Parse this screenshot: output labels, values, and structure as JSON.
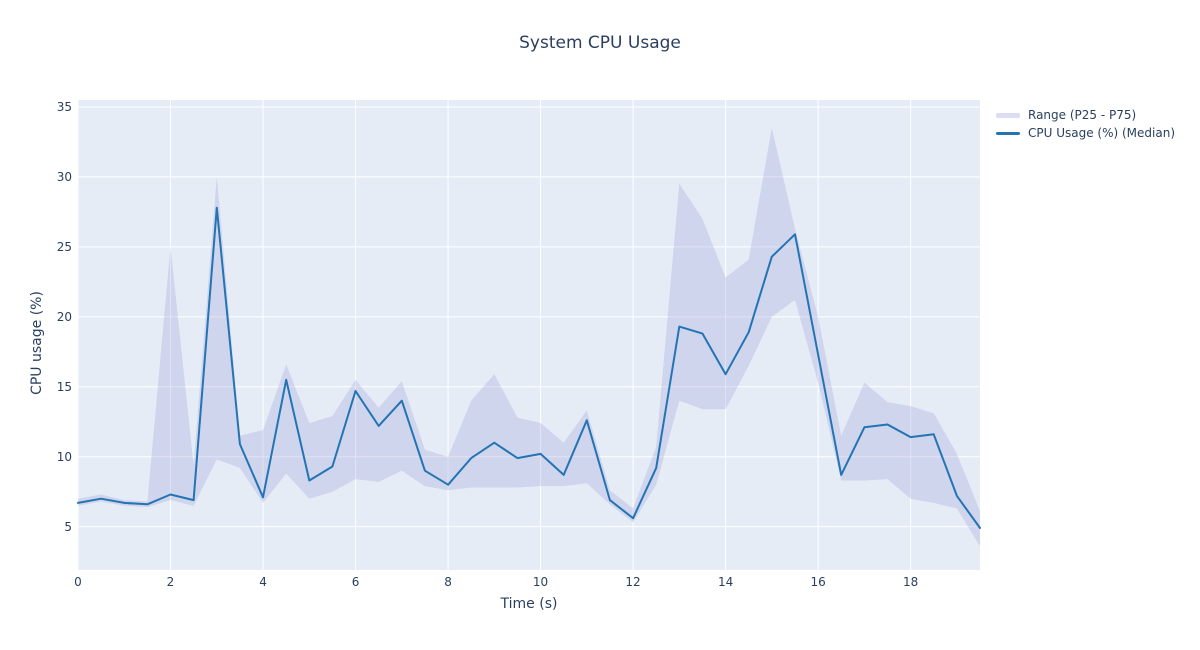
{
  "chart_data": {
    "type": "line",
    "title": "System CPU Usage",
    "xlabel": "Time (s)",
    "ylabel": "CPU usage (%)",
    "x": [
      0,
      0.5,
      1,
      1.5,
      2,
      2.5,
      3,
      3.5,
      4,
      4.5,
      5,
      5.5,
      6,
      6.5,
      7,
      7.5,
      8,
      8.5,
      9,
      9.5,
      10,
      10.5,
      11,
      11.5,
      12,
      12.5,
      13,
      13.5,
      14,
      14.5,
      15,
      15.5,
      16,
      16.5,
      17,
      17.5,
      18,
      18.5,
      19,
      19.5
    ],
    "series": [
      {
        "name": "Range (P25 - P75)",
        "type": "band",
        "lower": [
          6.5,
          6.8,
          6.5,
          6.4,
          6.9,
          6.5,
          9.8,
          9.2,
          6.7,
          8.8,
          7.0,
          7.5,
          8.4,
          8.2,
          9.0,
          7.9,
          7.6,
          7.8,
          7.8,
          7.8,
          7.9,
          7.9,
          8.1,
          6.6,
          5.3,
          8.0,
          14.0,
          13.4,
          13.4,
          16.5,
          20.0,
          21.2,
          15.3,
          8.3,
          8.3,
          8.4,
          7.0,
          6.7,
          6.3,
          3.6
        ],
        "upper": [
          7.0,
          7.3,
          6.9,
          6.8,
          25.0,
          9.4,
          30.0,
          11.5,
          11.9,
          16.6,
          12.4,
          12.9,
          15.5,
          13.5,
          15.4,
          10.5,
          10.0,
          14.0,
          15.9,
          12.8,
          12.4,
          11.0,
          13.3,
          7.6,
          6.3,
          10.7,
          29.5,
          27.0,
          22.8,
          24.1,
          33.5,
          26.3,
          20.0,
          11.5,
          15.3,
          13.9,
          13.6,
          13.1,
          10.2,
          6.1
        ],
        "color": "rgba(140,142,210,0.25)",
        "legend_swatch_color": "#dcdcf2"
      },
      {
        "name": "CPU Usage (%) (Median)",
        "type": "line",
        "values": [
          6.7,
          7.0,
          6.7,
          6.6,
          7.3,
          6.9,
          27.8,
          10.9,
          7.1,
          15.5,
          8.3,
          9.3,
          14.7,
          12.2,
          14.0,
          9.0,
          8.0,
          9.9,
          11.0,
          9.9,
          10.2,
          8.7,
          12.6,
          6.9,
          5.6,
          9.2,
          19.3,
          18.8,
          15.9,
          18.9,
          24.3,
          25.9,
          17.3,
          8.7,
          12.1,
          12.3,
          11.4,
          11.6,
          7.2,
          4.9
        ],
        "color": "#2474b4"
      }
    ],
    "xlim": [
      0,
      19.5
    ],
    "ylim": [
      1.9,
      35.5
    ],
    "xticks": [
      0,
      2,
      4,
      6,
      8,
      10,
      12,
      14,
      16,
      18
    ],
    "yticks": [
      5,
      10,
      15,
      20,
      25,
      30,
      35
    ],
    "grid": true,
    "gridline_color": "#ffffff",
    "plot_bg": "#e5ecf6",
    "text_color": "#2a3f5f",
    "legend_position": "top-right"
  }
}
